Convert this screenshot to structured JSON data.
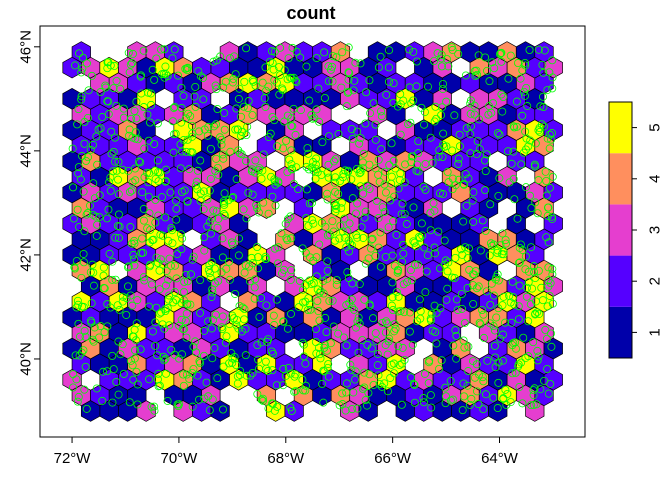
{
  "chart_data": {
    "type": "heatmap",
    "title": "count",
    "map": {
      "lon_range": [
        -72.6,
        -62.4
      ],
      "lat_range": [
        38.5,
        46.4
      ],
      "x_ticks": [
        {
          "lon": -72,
          "label": "72°W"
        },
        {
          "lon": -70,
          "label": "70°W"
        },
        {
          "lon": -68,
          "label": "68°W"
        },
        {
          "lon": -66,
          "label": "66°W"
        },
        {
          "lon": -64,
          "label": "64°W"
        }
      ],
      "y_ticks": [
        {
          "lat": 40,
          "label": "40°N"
        },
        {
          "lat": 42,
          "label": "42°N"
        },
        {
          "lat": 44,
          "label": "44°N"
        },
        {
          "lat": 46,
          "label": "46°N"
        }
      ],
      "grid_extent": {
        "lon": [
          -72.0,
          -63.0
        ],
        "lat": [
          39.0,
          46.0
        ]
      },
      "hex_radius_deg": 0.2,
      "point_count": 1500,
      "point_color": "#00ff00",
      "hex_border_color": "#000000"
    },
    "legend": {
      "position": "right",
      "breaks": [
        0.5,
        1.5,
        2.5,
        3.5,
        4.5,
        5.5
      ],
      "colors": [
        "#0000aa",
        "#5500ff",
        "#e53ecf",
        "#ff8f5e",
        "#ffff00"
      ],
      "ticks": [
        {
          "value": 1,
          "label": "1"
        },
        {
          "value": 2,
          "label": "2"
        },
        {
          "value": 3,
          "label": "3"
        },
        {
          "value": 4,
          "label": "4"
        },
        {
          "value": 5,
          "label": "5"
        }
      ]
    }
  }
}
